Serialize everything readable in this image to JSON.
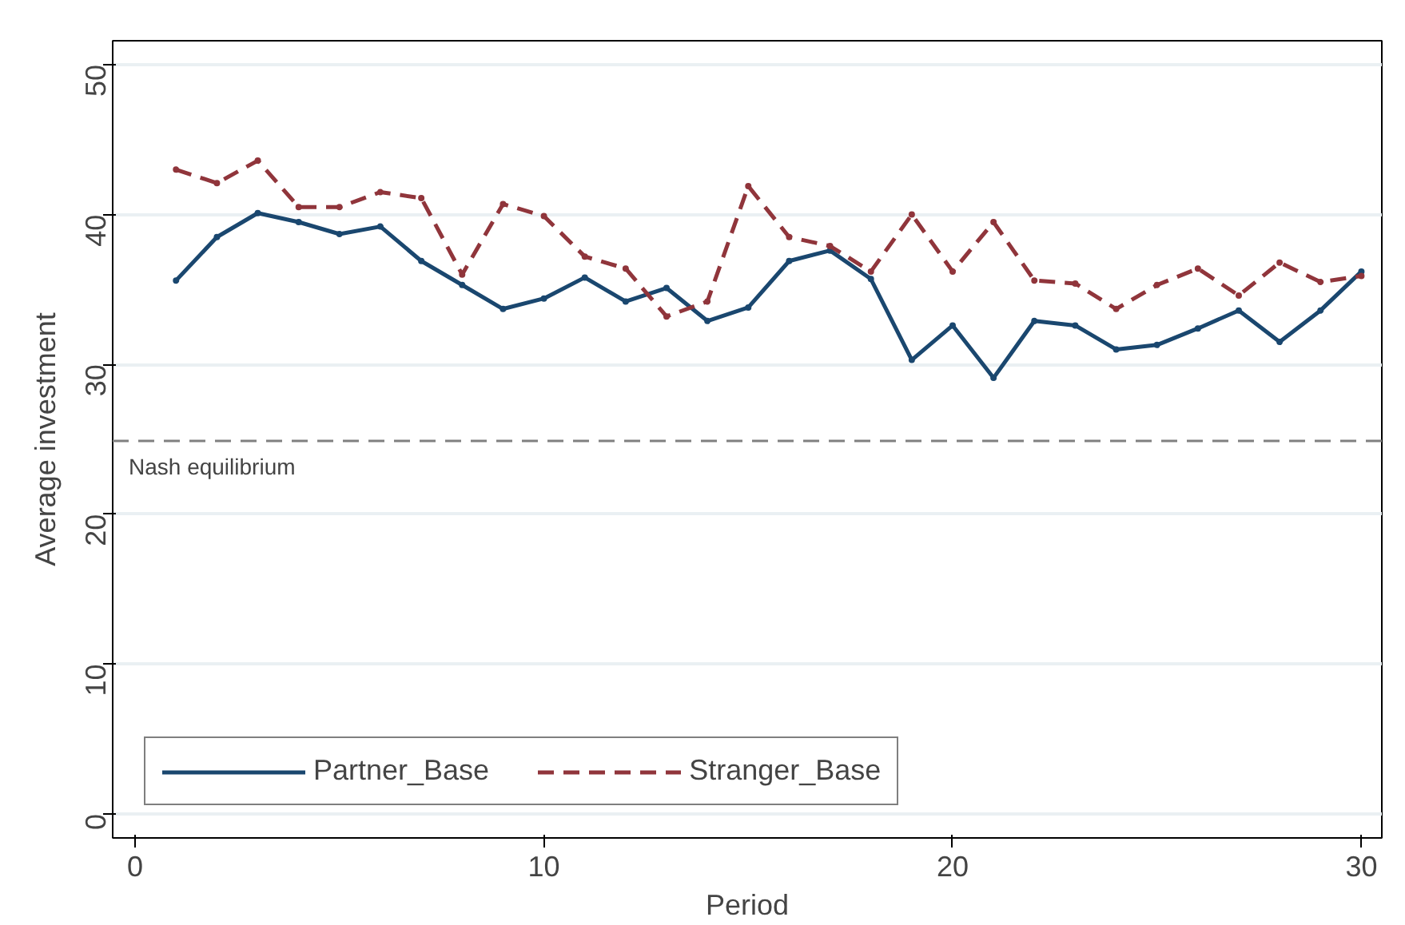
{
  "chart_data": {
    "type": "line",
    "xlabel": "Period",
    "ylabel": "Average investment",
    "x": [
      1,
      2,
      3,
      4,
      5,
      6,
      7,
      8,
      9,
      10,
      11,
      12,
      13,
      14,
      15,
      16,
      17,
      18,
      19,
      20,
      21,
      22,
      23,
      24,
      25,
      26,
      27,
      28,
      29,
      30
    ],
    "series": [
      {
        "name": "Partner_Base",
        "color": "#1a476f",
        "line_style": "solid",
        "values": [
          35.6,
          38.5,
          40.1,
          39.5,
          38.7,
          39.2,
          36.9,
          35.3,
          33.7,
          34.4,
          35.8,
          34.2,
          35.1,
          32.9,
          33.8,
          36.9,
          37.6,
          35.7,
          30.3,
          32.6,
          29.1,
          32.9,
          32.6,
          31.0,
          31.3,
          32.4,
          33.6,
          31.5,
          33.6,
          36.2
        ]
      },
      {
        "name": "Stranger_Base",
        "color": "#90353b",
        "line_style": "dashed",
        "values": [
          43.0,
          42.1,
          43.6,
          40.5,
          40.5,
          41.5,
          41.1,
          36.0,
          40.7,
          39.9,
          37.2,
          36.4,
          33.2,
          34.2,
          41.9,
          38.5,
          37.9,
          36.2,
          40.0,
          36.2,
          39.5,
          35.6,
          35.4,
          33.7,
          35.3,
          36.4,
          34.6,
          36.8,
          35.5,
          35.9
        ]
      }
    ],
    "marker": "circle",
    "xlim": [
      -0.55,
      30.5
    ],
    "ylim": [
      -1.6,
      51.6
    ],
    "xticks": [
      0,
      10,
      20,
      30
    ],
    "yticks": [
      0,
      10,
      20,
      30,
      40,
      50
    ],
    "grid": "y",
    "legend": "bottom left",
    "ref_lines": [
      {
        "axis": "y",
        "value": 24.9,
        "label": "Nash equilibrium",
        "color": "#808080",
        "line_style": "dashed"
      }
    ]
  }
}
